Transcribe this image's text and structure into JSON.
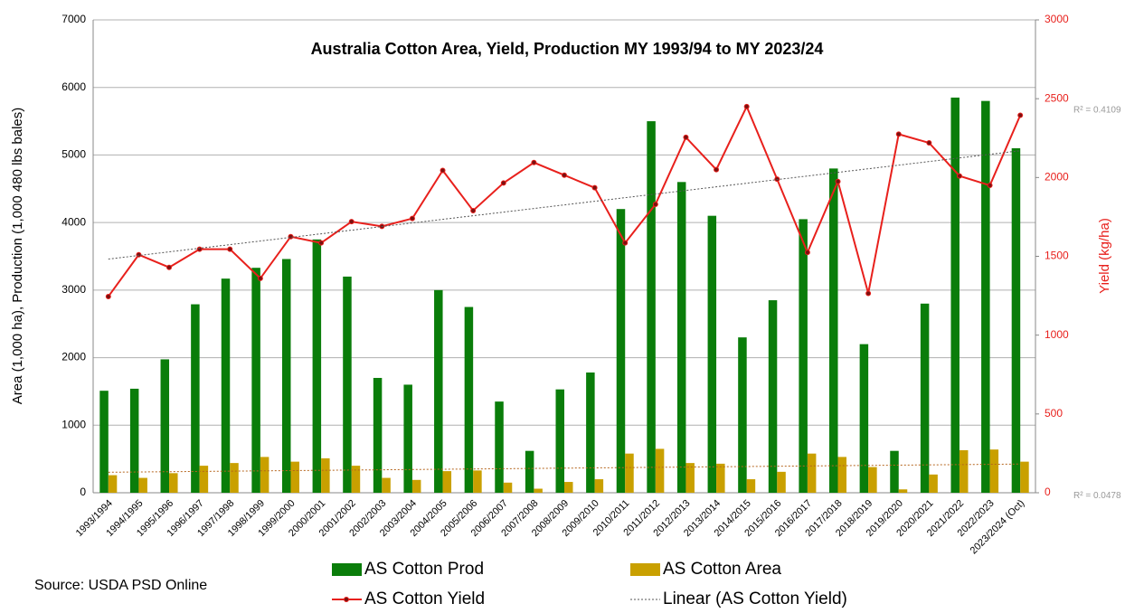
{
  "chart_data": {
    "type": "bar_line_combo",
    "title": "Australia Cotton Area, Yield, Production MY 1993/94 to MY 2023/24",
    "ylabel": "Area (1,000 ha), Production (1,000 480 lbs bales)",
    "y2label": "Yield (kg/ha)",
    "source": "Source: USDA PSD Online",
    "categories": [
      "1993/1994",
      "1994/1995",
      "1995/1996",
      "1996/1997",
      "1997/1998",
      "1998/1999",
      "1999/2000",
      "2000/2001",
      "2001/2002",
      "2002/2003",
      "2003/2004",
      "2004/2005",
      "2005/2006",
      "2006/2007",
      "2007/2008",
      "2008/2009",
      "2009/2010",
      "2010/2011",
      "2011/2012",
      "2012/2013",
      "2013/2014",
      "2014/2015",
      "2015/2016",
      "2016/2017",
      "2017/2018",
      "2018/2019",
      "2019/2020",
      "2020/2021",
      "2021/2022",
      "2022/2023",
      "2023/2024 (Oct)"
    ],
    "series": [
      {
        "name": "AS Cotton Prod",
        "type": "bar",
        "color": "#0a7d0a",
        "values": [
          1510,
          1540,
          1975,
          2790,
          3170,
          3330,
          3460,
          3750,
          3200,
          1700,
          1600,
          3000,
          2750,
          1350,
          620,
          1530,
          1780,
          4200,
          5500,
          4600,
          4100,
          2300,
          2850,
          4050,
          4800,
          2200,
          620,
          2800,
          5850,
          5800,
          5100
        ]
      },
      {
        "name": "AS Cotton Area",
        "type": "bar",
        "color": "#c9a000",
        "values": [
          260,
          220,
          290,
          400,
          440,
          530,
          460,
          510,
          400,
          220,
          190,
          320,
          330,
          150,
          60,
          160,
          200,
          580,
          650,
          440,
          430,
          200,
          310,
          580,
          530,
          380,
          50,
          270,
          630,
          640,
          460
        ]
      },
      {
        "name": "AS Cotton Yield",
        "type": "line",
        "axis": "y2",
        "color": "#e8201c",
        "values": [
          1245,
          1510,
          1430,
          1545,
          1545,
          1360,
          1625,
          1585,
          1720,
          1690,
          1740,
          2045,
          1790,
          1965,
          2095,
          2015,
          1935,
          1585,
          1830,
          2255,
          2050,
          2450,
          1990,
          1525,
          1975,
          1265,
          2275,
          2220,
          2010,
          1950,
          2395
        ]
      }
    ],
    "trendlines": [
      {
        "name": "Linear (AS Cotton Yield)",
        "series": 2,
        "color": "#555555",
        "r2_label": "R² = 0.4109"
      },
      {
        "series": 1,
        "color": "#b5651d",
        "r2_label": "R² = 0.0478"
      }
    ],
    "ylim": [
      0,
      7000
    ],
    "yticks": [
      0,
      1000,
      2000,
      3000,
      4000,
      5000,
      6000,
      7000
    ],
    "y2lim": [
      0,
      3000
    ],
    "y2ticks": [
      0,
      500,
      1000,
      1500,
      2000,
      2500,
      3000
    ],
    "grid": true
  }
}
